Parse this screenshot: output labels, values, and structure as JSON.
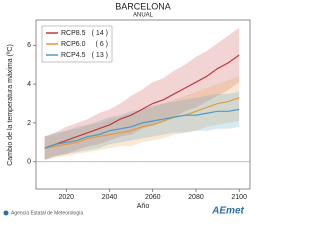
{
  "chart_data": {
    "type": "line",
    "title": "BARCELONA",
    "subtitle": "ANUAL",
    "x_label": "Año",
    "y_label": "Cambio de la temperatura máxima (ºC)",
    "x": [
      2010,
      2015,
      2020,
      2025,
      2030,
      2035,
      2040,
      2045,
      2050,
      2055,
      2060,
      2065,
      2070,
      2075,
      2080,
      2085,
      2090,
      2095,
      2100
    ],
    "xlim": [
      2006,
      2105
    ],
    "xticks": [
      2020,
      2040,
      2060,
      2080,
      2100
    ],
    "ylim": [
      -1.4,
      7.3
    ],
    "yticks": [
      0,
      2,
      4,
      6
    ],
    "series": [
      {
        "name": "RCP8.5",
        "count": "( 14 )",
        "color": "#c23b3b",
        "values": [
          0.7,
          0.9,
          1.1,
          1.3,
          1.5,
          1.7,
          1.9,
          2.2,
          2.4,
          2.7,
          3.0,
          3.2,
          3.5,
          3.8,
          4.1,
          4.4,
          4.8,
          5.1,
          5.5
        ],
        "lower": [
          0.1,
          0.3,
          0.4,
          0.6,
          0.8,
          0.9,
          1.1,
          1.3,
          1.4,
          1.7,
          1.9,
          2.1,
          2.3,
          2.6,
          2.8,
          3.1,
          3.4,
          3.7,
          4.1
        ],
        "upper": [
          1.3,
          1.5,
          1.8,
          2.0,
          2.2,
          2.5,
          2.7,
          3.0,
          3.4,
          3.7,
          4.1,
          4.3,
          4.7,
          5.0,
          5.4,
          5.7,
          6.1,
          6.5,
          6.9
        ]
      },
      {
        "name": "RCP6.0",
        "count": "( 6 )",
        "color": "#e39a3a",
        "values": [
          0.7,
          0.8,
          0.9,
          1.0,
          1.2,
          1.3,
          1.4,
          1.5,
          1.6,
          1.8,
          1.9,
          2.1,
          2.3,
          2.4,
          2.6,
          2.8,
          3.0,
          3.1,
          3.3
        ],
        "lower": [
          0.1,
          0.2,
          0.3,
          0.4,
          0.5,
          0.6,
          0.7,
          0.8,
          0.8,
          1.0,
          1.1,
          1.2,
          1.4,
          1.5,
          1.6,
          1.8,
          1.9,
          2.0,
          2.1
        ],
        "upper": [
          1.3,
          1.4,
          1.6,
          1.7,
          1.9,
          2.0,
          2.2,
          2.3,
          2.5,
          2.7,
          2.8,
          3.0,
          3.2,
          3.4,
          3.6,
          3.8,
          4.0,
          4.2,
          4.4
        ]
      },
      {
        "name": "RCP4.5",
        "count": "( 13 )",
        "color": "#4a9ac6",
        "values": [
          0.7,
          0.9,
          1.0,
          1.1,
          1.3,
          1.4,
          1.6,
          1.7,
          1.8,
          2.0,
          2.1,
          2.2,
          2.3,
          2.4,
          2.4,
          2.5,
          2.6,
          2.6,
          2.7
        ],
        "lower": [
          0.1,
          0.3,
          0.4,
          0.5,
          0.6,
          0.7,
          0.9,
          1.0,
          1.1,
          1.2,
          1.3,
          1.4,
          1.5,
          1.5,
          1.6,
          1.6,
          1.7,
          1.7,
          1.8
        ],
        "upper": [
          1.3,
          1.5,
          1.6,
          1.8,
          1.9,
          2.1,
          2.3,
          2.4,
          2.6,
          2.7,
          2.9,
          3.0,
          3.1,
          3.2,
          3.3,
          3.4,
          3.5,
          3.5,
          3.6
        ]
      }
    ]
  },
  "footer": {
    "agency": "Agencia Estatal de Meteorología",
    "logo": "AEmet"
  }
}
